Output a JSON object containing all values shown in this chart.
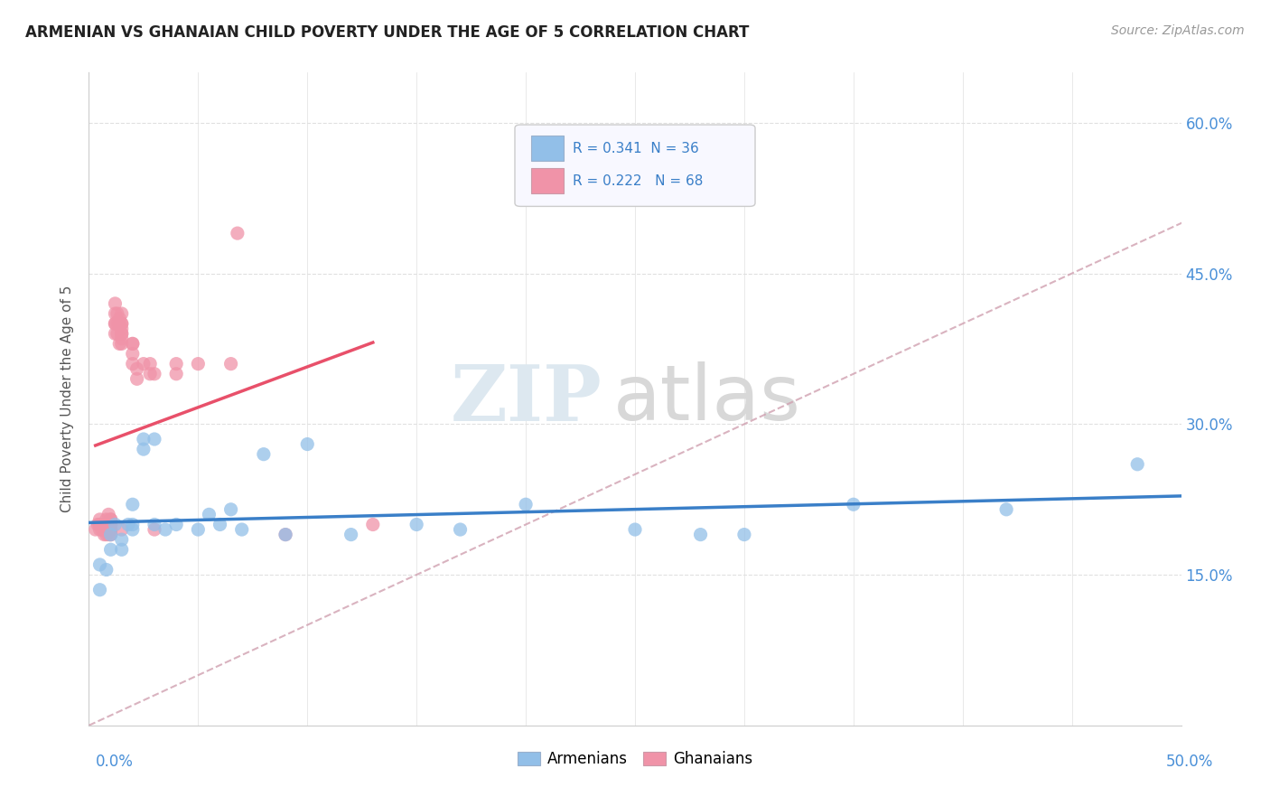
{
  "title": "ARMENIAN VS GHANAIAN CHILD POVERTY UNDER THE AGE OF 5 CORRELATION CHART",
  "source": "Source: ZipAtlas.com",
  "ylabel": "Child Poverty Under the Age of 5",
  "ytick_labels": [
    "15.0%",
    "30.0%",
    "45.0%",
    "60.0%"
  ],
  "ytick_values": [
    0.15,
    0.3,
    0.45,
    0.6
  ],
  "xlim": [
    0.0,
    0.5
  ],
  "ylim": [
    0.0,
    0.65
  ],
  "watermark_zip": "ZIP",
  "watermark_atlas": "atlas",
  "legend_label_armenians": "Armenians",
  "legend_label_ghanaians": "Ghanaians",
  "armenian_color": "#92bfe8",
  "ghanaian_color": "#f093a8",
  "trendline_armenian_color": "#3a7fc8",
  "trendline_ghanaian_color": "#e8506a",
  "trendline_diagonal_color": "#d0a0b0",
  "armenian_R": 0.341,
  "armenian_N": 36,
  "ghanaian_R": 0.222,
  "ghanaian_N": 68,
  "armenian_x": [
    0.005,
    0.005,
    0.008,
    0.01,
    0.01,
    0.012,
    0.015,
    0.015,
    0.018,
    0.02,
    0.02,
    0.02,
    0.025,
    0.025,
    0.03,
    0.03,
    0.035,
    0.04,
    0.05,
    0.055,
    0.06,
    0.065,
    0.07,
    0.08,
    0.09,
    0.1,
    0.12,
    0.15,
    0.17,
    0.2,
    0.25,
    0.28,
    0.3,
    0.35,
    0.42,
    0.48
  ],
  "armenian_y": [
    0.135,
    0.16,
    0.155,
    0.175,
    0.19,
    0.2,
    0.175,
    0.185,
    0.2,
    0.2,
    0.22,
    0.195,
    0.285,
    0.275,
    0.285,
    0.2,
    0.195,
    0.2,
    0.195,
    0.21,
    0.2,
    0.215,
    0.195,
    0.27,
    0.19,
    0.28,
    0.19,
    0.2,
    0.195,
    0.22,
    0.195,
    0.19,
    0.19,
    0.22,
    0.215,
    0.26
  ],
  "ghanaian_x": [
    0.003,
    0.004,
    0.005,
    0.005,
    0.005,
    0.005,
    0.006,
    0.006,
    0.007,
    0.007,
    0.007,
    0.007,
    0.008,
    0.008,
    0.008,
    0.008,
    0.009,
    0.009,
    0.009,
    0.009,
    0.01,
    0.01,
    0.01,
    0.01,
    0.01,
    0.01,
    0.01,
    0.01,
    0.01,
    0.01,
    0.012,
    0.012,
    0.012,
    0.012,
    0.012,
    0.013,
    0.013,
    0.013,
    0.014,
    0.014,
    0.014,
    0.015,
    0.015,
    0.015,
    0.015,
    0.015,
    0.015,
    0.015,
    0.015,
    0.015,
    0.02,
    0.02,
    0.02,
    0.02,
    0.022,
    0.022,
    0.025,
    0.028,
    0.028,
    0.03,
    0.03,
    0.04,
    0.04,
    0.05,
    0.065,
    0.068,
    0.09,
    0.13
  ],
  "ghanaian_y": [
    0.195,
    0.2,
    0.2,
    0.2,
    0.205,
    0.195,
    0.2,
    0.195,
    0.2,
    0.195,
    0.19,
    0.2,
    0.2,
    0.195,
    0.205,
    0.19,
    0.2,
    0.195,
    0.21,
    0.19,
    0.195,
    0.2,
    0.205,
    0.19,
    0.2,
    0.2,
    0.195,
    0.19,
    0.205,
    0.2,
    0.4,
    0.41,
    0.42,
    0.4,
    0.39,
    0.4,
    0.41,
    0.39,
    0.4,
    0.405,
    0.38,
    0.4,
    0.39,
    0.41,
    0.395,
    0.385,
    0.38,
    0.4,
    0.39,
    0.195,
    0.38,
    0.38,
    0.37,
    0.36,
    0.345,
    0.355,
    0.36,
    0.36,
    0.35,
    0.35,
    0.195,
    0.36,
    0.35,
    0.36,
    0.36,
    0.49,
    0.19,
    0.2
  ],
  "legend_box_color": "#f0f4ff",
  "legend_border_color": "#cccccc",
  "grid_color": "#e0e0e0",
  "spine_color": "#cccccc"
}
